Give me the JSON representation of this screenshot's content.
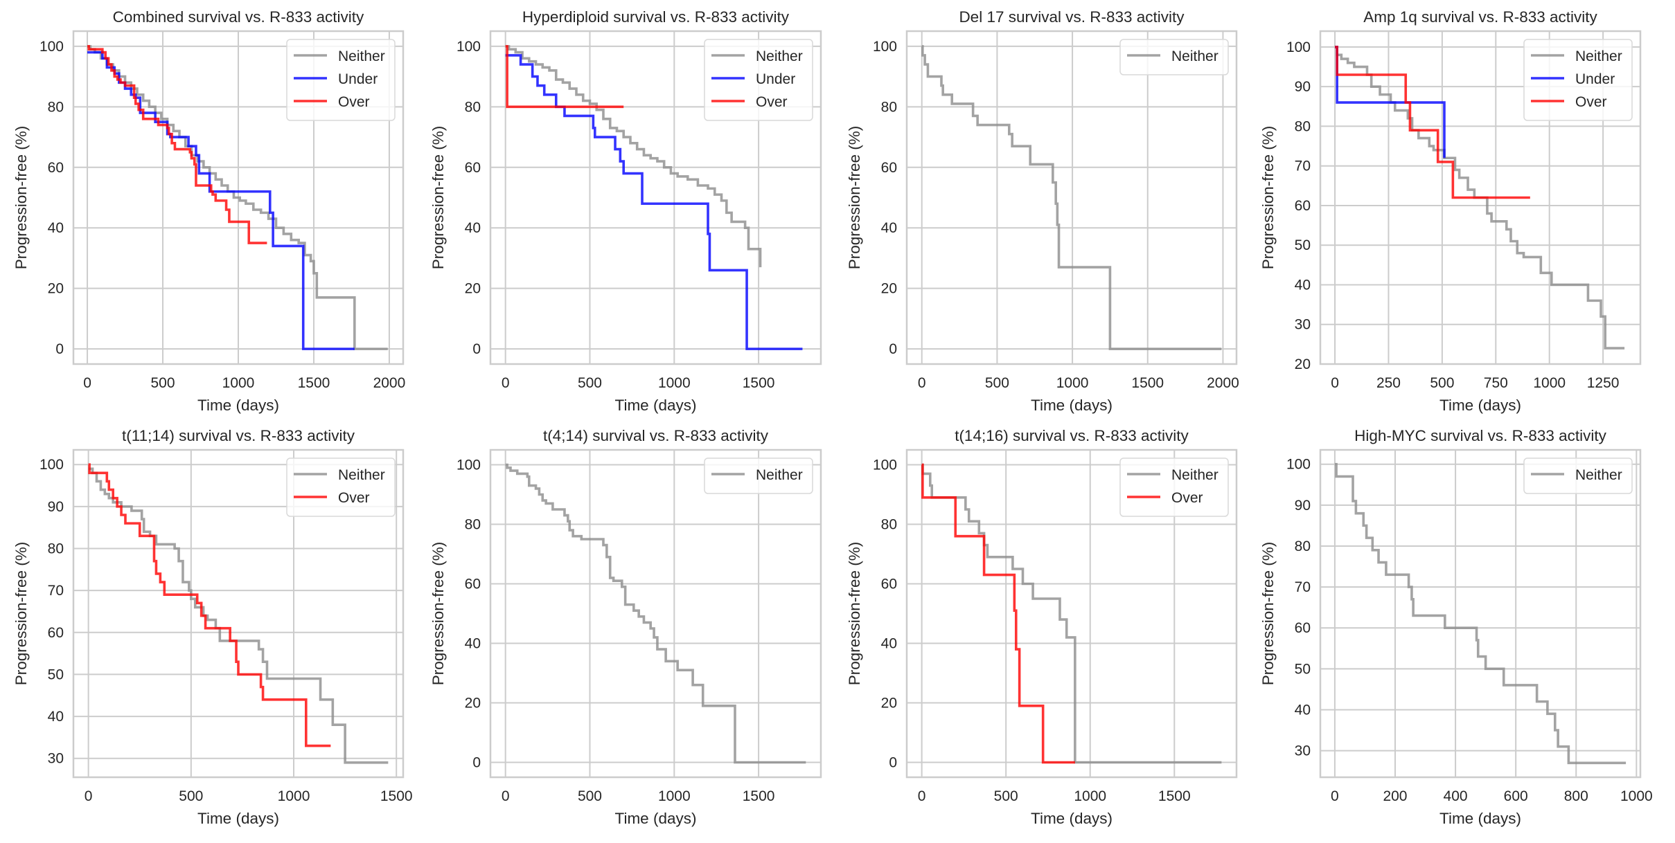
{
  "figure": {
    "colors": {
      "Neither": "#8c8c8c",
      "Under": "#0000ff",
      "Over": "#ff0000",
      "grid": "#cccccc",
      "spine": "#cccccc",
      "text": "#262626"
    }
  },
  "chart_data": [
    {
      "type": "line",
      "step": true,
      "title": "Combined survival vs. R-833 activity",
      "xlabel": "Time (days)",
      "ylabel": "Progression-free (%)",
      "xlim": [
        -92,
        2092
      ],
      "ylim": [
        -5,
        105
      ],
      "xticks": [
        0,
        500,
        1000,
        1500,
        2000
      ],
      "yticks": [
        0,
        20,
        40,
        60,
        80,
        100
      ],
      "grid": true,
      "legend": {
        "position": "top-right",
        "entries": [
          "Neither",
          "Under",
          "Over"
        ]
      },
      "series": [
        {
          "name": "Neither",
          "x": [
            0,
            20,
            50,
            90,
            130,
            170,
            210,
            250,
            290,
            330,
            370,
            410,
            450,
            490,
            530,
            570,
            610,
            650,
            690,
            730,
            770,
            810,
            850,
            890,
            930,
            970,
            1010,
            1050,
            1100,
            1150,
            1200,
            1250,
            1300,
            1350,
            1400,
            1440,
            1480,
            1500,
            1520,
            1770,
            1990
          ],
          "y": [
            100,
            99,
            98,
            96,
            94,
            92,
            90,
            88,
            86,
            84,
            82,
            80,
            78,
            76,
            74,
            72,
            70,
            67,
            64,
            62,
            60,
            58,
            56,
            54,
            52,
            50,
            49,
            48,
            46,
            45,
            43,
            40,
            38,
            36,
            35,
            31,
            29,
            25,
            17,
            0,
            0
          ]
        },
        {
          "name": "Under",
          "x": [
            0,
            100,
            130,
            180,
            210,
            250,
            290,
            320,
            350,
            450,
            530,
            550,
            670,
            720,
            740,
            810,
            1210,
            1230,
            1430,
            1770
          ],
          "y": [
            98,
            96,
            93,
            91,
            88,
            86,
            84,
            83,
            78,
            75,
            71,
            70,
            67,
            64,
            58,
            52,
            45,
            34,
            0,
            0
          ]
        },
        {
          "name": "Over",
          "x": [
            0,
            10,
            100,
            120,
            140,
            160,
            180,
            200,
            220,
            250,
            310,
            320,
            340,
            370,
            470,
            530,
            540,
            560,
            580,
            680,
            690,
            710,
            720,
            820,
            830,
            850,
            920,
            940,
            1070,
            1190
          ],
          "y": [
            100,
            99,
            98,
            96,
            94,
            92,
            90,
            89,
            88,
            87,
            83,
            81,
            79,
            76,
            74,
            73,
            71,
            68,
            66,
            65,
            63,
            61,
            54,
            52,
            51,
            49,
            46,
            42,
            35,
            35
          ]
        }
      ]
    },
    {
      "type": "line",
      "step": true,
      "title": "Hyperdiploid survival vs. R-833 activity",
      "xlabel": "Time (days)",
      "ylabel": "Progression-free (%)",
      "xlim": [
        -89,
        1869
      ],
      "ylim": [
        -5,
        105
      ],
      "xticks": [
        0,
        500,
        1000,
        1500
      ],
      "yticks": [
        0,
        20,
        40,
        60,
        80,
        100
      ],
      "grid": true,
      "legend": {
        "position": "top-right",
        "entries": [
          "Neither",
          "Under",
          "Over"
        ]
      },
      "series": [
        {
          "name": "Neither",
          "x": [
            0,
            20,
            60,
            100,
            140,
            180,
            220,
            260,
            300,
            340,
            380,
            420,
            460,
            500,
            540,
            580,
            620,
            660,
            700,
            740,
            780,
            820,
            860,
            900,
            940,
            980,
            1020,
            1080,
            1140,
            1200,
            1240,
            1280,
            1310,
            1340,
            1380,
            1420,
            1440,
            1460,
            1510
          ],
          "y": [
            100,
            99,
            98,
            96,
            95,
            94,
            93,
            92,
            89,
            88,
            86,
            84,
            82,
            81,
            79,
            76,
            73,
            72,
            70,
            68,
            66,
            64,
            63,
            62,
            60,
            58,
            57,
            56,
            54,
            53,
            51,
            49,
            45,
            42,
            42,
            40,
            33,
            33,
            27
          ]
        },
        {
          "name": "Under",
          "x": [
            0,
            90,
            160,
            190,
            230,
            300,
            350,
            520,
            530,
            650,
            680,
            700,
            810,
            1200,
            1210,
            1430,
            1760
          ],
          "y": [
            97,
            94,
            90,
            87,
            84,
            80,
            77,
            73,
            70,
            66,
            62,
            58,
            48,
            38,
            26,
            0,
            0
          ]
        },
        {
          "name": "Over",
          "x": [
            0,
            10,
            700
          ],
          "y": [
            100,
            80,
            80
          ]
        }
      ]
    },
    {
      "type": "line",
      "step": true,
      "title": "Del 17 survival vs. R-833 activity",
      "xlabel": "Time (days)",
      "ylabel": "Progression-free (%)",
      "xlim": [
        -100,
        2090
      ],
      "ylim": [
        -5,
        105
      ],
      "xticks": [
        0,
        500,
        1000,
        1500,
        2000
      ],
      "yticks": [
        0,
        20,
        40,
        60,
        80,
        100
      ],
      "grid": true,
      "legend": {
        "position": "top-right",
        "entries": [
          "Neither"
        ]
      },
      "series": [
        {
          "name": "Neither",
          "x": [
            0,
            5,
            20,
            40,
            130,
            140,
            200,
            340,
            370,
            580,
            600,
            720,
            870,
            890,
            900,
            910,
            1250,
            1990
          ],
          "y": [
            100,
            97,
            94,
            90,
            87,
            84,
            81,
            77,
            74,
            71,
            67,
            61,
            55,
            48,
            41,
            27,
            0,
            0
          ]
        }
      ]
    },
    {
      "type": "line",
      "step": true,
      "title": "Amp 1q survival vs. R-833 activity",
      "xlabel": "Time (days)",
      "ylabel": "Progression-free (%)",
      "xlim": [
        -68,
        1424
      ],
      "ylim": [
        20,
        104
      ],
      "xticks": [
        0,
        250,
        500,
        750,
        1000,
        1250
      ],
      "yticks": [
        20,
        30,
        40,
        50,
        60,
        70,
        80,
        90,
        100
      ],
      "grid": true,
      "legend": {
        "position": "top-right",
        "entries": [
          "Neither",
          "Under",
          "Over"
        ]
      },
      "series": [
        {
          "name": "Neither",
          "x": [
            0,
            10,
            30,
            60,
            90,
            150,
            170,
            210,
            260,
            280,
            340,
            360,
            390,
            440,
            460,
            510,
            560,
            580,
            620,
            650,
            710,
            730,
            800,
            820,
            850,
            880,
            960,
            1010,
            1180,
            1240,
            1260,
            1350
          ],
          "y": [
            100,
            98,
            97,
            96,
            95,
            93,
            90,
            88,
            86,
            84,
            82,
            79,
            77,
            75,
            74,
            72,
            69,
            67,
            64,
            62,
            58,
            56,
            54,
            51,
            48,
            47,
            43,
            40,
            36,
            32,
            24,
            24
          ]
        },
        {
          "name": "Under",
          "x": [
            0,
            10,
            510
          ],
          "y": [
            100,
            86,
            72
          ]
        },
        {
          "name": "Over",
          "x": [
            0,
            10,
            330,
            350,
            480,
            550,
            910
          ],
          "y": [
            100,
            93,
            86,
            79,
            71,
            62,
            62
          ]
        }
      ]
    },
    {
      "type": "line",
      "step": true,
      "title": "t(11;14) survival vs. R-833 activity",
      "xlabel": "Time (days)",
      "ylabel": "Progression-free (%)",
      "xlim": [
        -73,
        1533
      ],
      "ylim": [
        25.5,
        103.5
      ],
      "xticks": [
        0,
        500,
        1000,
        1500
      ],
      "yticks": [
        30,
        40,
        50,
        60,
        70,
        80,
        90,
        100
      ],
      "grid": true,
      "legend": {
        "position": "top-right",
        "entries": [
          "Neither",
          "Over"
        ]
      },
      "series": [
        {
          "name": "Neither",
          "x": [
            0,
            20,
            40,
            60,
            80,
            100,
            120,
            160,
            210,
            260,
            270,
            300,
            330,
            420,
            440,
            460,
            490,
            500,
            520,
            560,
            580,
            620,
            640,
            830,
            850,
            870,
            1130,
            1190,
            1250,
            1460
          ],
          "y": [
            99,
            98,
            96,
            94,
            93,
            92,
            91,
            90,
            89,
            87,
            84,
            83,
            81,
            80,
            77,
            72,
            70,
            68,
            66,
            64,
            63,
            61,
            58,
            56,
            53,
            49,
            44,
            38,
            29,
            29
          ]
        },
        {
          "name": "Over",
          "x": [
            0,
            5,
            90,
            100,
            120,
            140,
            160,
            180,
            250,
            320,
            330,
            350,
            370,
            530,
            550,
            570,
            690,
            720,
            730,
            840,
            850,
            1060,
            1180
          ],
          "y": [
            100,
            98,
            96,
            94,
            92,
            90,
            88,
            86,
            83,
            77,
            74,
            72,
            69,
            67,
            64,
            61,
            58,
            53,
            50,
            47,
            44,
            33,
            33
          ]
        }
      ]
    },
    {
      "type": "line",
      "step": true,
      "title": "t(4;14) survival vs. R-833 activity",
      "xlabel": "Time (days)",
      "ylabel": "Progression-free (%)",
      "xlim": [
        -89,
        1869
      ],
      "ylim": [
        -5,
        105
      ],
      "xticks": [
        0,
        500,
        1000,
        1500
      ],
      "yticks": [
        0,
        20,
        40,
        60,
        80,
        100
      ],
      "grid": true,
      "legend": {
        "position": "top-right",
        "entries": [
          "Neither"
        ]
      },
      "series": [
        {
          "name": "Neither",
          "x": [
            0,
            10,
            30,
            70,
            130,
            140,
            180,
            200,
            220,
            240,
            280,
            350,
            370,
            380,
            400,
            450,
            580,
            600,
            620,
            640,
            690,
            710,
            760,
            790,
            820,
            860,
            880,
            900,
            950,
            1020,
            1110,
            1170,
            1360,
            1780
          ],
          "y": [
            100,
            99,
            98,
            97,
            96,
            93,
            92,
            90,
            88,
            87,
            85,
            83,
            81,
            78,
            76,
            75,
            73,
            69,
            62,
            61,
            59,
            53,
            51,
            49,
            47,
            45,
            42,
            38,
            34,
            31,
            26,
            19,
            0,
            0
          ]
        }
      ]
    },
    {
      "type": "line",
      "step": true,
      "title": "t(14;16) survival vs. R-833 activity",
      "xlabel": "Time (days)",
      "ylabel": "Progression-free (%)",
      "xlim": [
        -89,
        1869
      ],
      "ylim": [
        -5,
        105
      ],
      "xticks": [
        0,
        500,
        1000,
        1500
      ],
      "yticks": [
        0,
        20,
        40,
        60,
        80,
        100
      ],
      "grid": true,
      "legend": {
        "position": "top-right",
        "entries": [
          "Neither",
          "Over"
        ]
      },
      "series": [
        {
          "name": "Neither",
          "x": [
            0,
            5,
            50,
            60,
            260,
            280,
            340,
            370,
            390,
            540,
            600,
            660,
            820,
            860,
            910,
            1780
          ],
          "y": [
            100,
            97,
            93,
            89,
            85,
            81,
            77,
            73,
            69,
            65,
            60,
            55,
            48,
            42,
            0,
            0
          ]
        },
        {
          "name": "Over",
          "x": [
            0,
            5,
            200,
            370,
            550,
            560,
            580,
            720,
            910
          ],
          "y": [
            100,
            89,
            76,
            63,
            51,
            38,
            19,
            0,
            0
          ]
        }
      ]
    },
    {
      "type": "line",
      "step": true,
      "title": "High-MYC survival vs. R-833 activity",
      "xlabel": "Time (days)",
      "ylabel": "Progression-free (%)",
      "xlim": [
        -48,
        1013
      ],
      "ylim": [
        23.5,
        103.5
      ],
      "xticks": [
        0,
        200,
        400,
        600,
        800,
        1000
      ],
      "yticks": [
        30,
        40,
        50,
        60,
        70,
        80,
        90,
        100
      ],
      "grid": true,
      "legend": {
        "position": "top-right",
        "entries": [
          "Neither"
        ]
      },
      "series": [
        {
          "name": "Neither",
          "x": [
            0,
            5,
            60,
            70,
            95,
            105,
            125,
            145,
            170,
            245,
            255,
            260,
            365,
            470,
            475,
            500,
            560,
            670,
            705,
            730,
            740,
            775,
            965
          ],
          "y": [
            100,
            97,
            91,
            88,
            85,
            82,
            79,
            76,
            73,
            70,
            67,
            63,
            60,
            57,
            53,
            50,
            46,
            42,
            39,
            35,
            31,
            27,
            27
          ]
        }
      ]
    }
  ]
}
